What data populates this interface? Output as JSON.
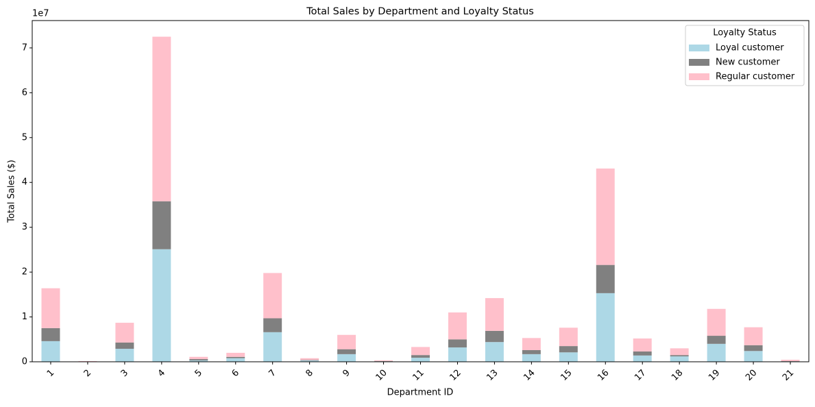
{
  "chart_data": {
    "type": "stacked_bar",
    "title": "Total Sales by Department and Loyalty Status",
    "x_label": "Department ID",
    "y_label": "Total Sales ($)",
    "y_offset_label": "1e7",
    "legend_title": "Loyalty Status",
    "legend_position": "upper right",
    "categories": [
      "1",
      "2",
      "3",
      "4",
      "5",
      "6",
      "7",
      "8",
      "9",
      "10",
      "11",
      "12",
      "13",
      "14",
      "15",
      "16",
      "17",
      "18",
      "19",
      "20",
      "21"
    ],
    "series": [
      {
        "name": "Loyal customer",
        "color": "#add8e6",
        "values": [
          4600000,
          50000,
          2900000,
          25100000,
          300000,
          800000,
          6600000,
          300000,
          1700000,
          100000,
          900000,
          3200000,
          4400000,
          1700000,
          2100000,
          15300000,
          1400000,
          1200000,
          4000000,
          2400000,
          100000
        ]
      },
      {
        "name": "New customer",
        "color": "#808080",
        "values": [
          2900000,
          20000,
          1400000,
          10700000,
          300000,
          300000,
          3100000,
          100000,
          1100000,
          50000,
          600000,
          1800000,
          2500000,
          900000,
          1400000,
          6300000,
          900000,
          300000,
          1800000,
          1300000,
          50000
        ]
      },
      {
        "name": "Regular customer",
        "color": "#ffc0cb",
        "values": [
          8900000,
          80000,
          4400000,
          36700000,
          500000,
          900000,
          10100000,
          400000,
          3200000,
          150000,
          1800000,
          6000000,
          7300000,
          2700000,
          4100000,
          21500000,
          2900000,
          1500000,
          6000000,
          4000000,
          300000
        ]
      }
    ],
    "ylim": [
      0,
      76100000
    ],
    "yticks": [
      {
        "value": 0,
        "label": "0"
      },
      {
        "value": 10000000,
        "label": "1"
      },
      {
        "value": 20000000,
        "label": "2"
      },
      {
        "value": 30000000,
        "label": "3"
      },
      {
        "value": 40000000,
        "label": "4"
      },
      {
        "value": 50000000,
        "label": "5"
      },
      {
        "value": 60000000,
        "label": "6"
      },
      {
        "value": 70000000,
        "label": "7"
      }
    ]
  }
}
